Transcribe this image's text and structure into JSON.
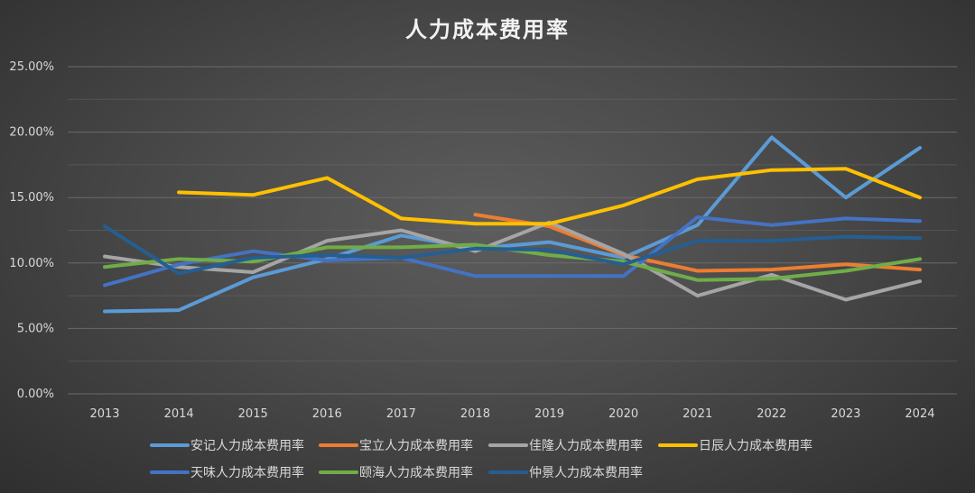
{
  "chart_data": {
    "type": "line",
    "title": "人力成本费用率",
    "xlabel": "",
    "ylabel": "",
    "x": [
      "2013",
      "2014",
      "2015",
      "2016",
      "2017",
      "2018",
      "2019",
      "2020",
      "2021",
      "2022",
      "2023",
      "2024"
    ],
    "ylim": [
      0,
      0.25
    ],
    "yticks": [
      "0.00%",
      "5.00%",
      "10.00%",
      "15.00%",
      "20.00%",
      "25.00%"
    ],
    "grid": true,
    "legend_position": "bottom",
    "series": [
      {
        "name": "安记人力成本费用率",
        "color": "#5b9bd5",
        "values": [
          0.063,
          0.064,
          0.089,
          0.103,
          0.121,
          0.111,
          0.116,
          0.104,
          0.129,
          0.196,
          0.15,
          0.188
        ]
      },
      {
        "name": "宝立人力成本费用率",
        "color": "#ed7d31",
        "values": [
          null,
          null,
          null,
          null,
          null,
          0.137,
          0.128,
          0.106,
          0.094,
          0.095,
          0.099,
          0.095
        ]
      },
      {
        "name": "佳隆人力成本费用率",
        "color": "#a5a5a5",
        "values": [
          0.105,
          0.097,
          0.093,
          0.117,
          0.125,
          0.109,
          0.131,
          0.107,
          0.075,
          0.091,
          0.072,
          0.086
        ]
      },
      {
        "name": "日辰人力成本费用率",
        "color": "#ffc000",
        "values": [
          null,
          0.154,
          0.152,
          0.165,
          0.134,
          0.13,
          0.13,
          0.144,
          0.164,
          0.171,
          0.172,
          0.15
        ]
      },
      {
        "name": "天味人力成本费用率",
        "color": "#4472c4",
        "values": [
          0.083,
          0.099,
          0.109,
          0.102,
          0.104,
          0.09,
          0.09,
          0.09,
          0.135,
          0.129,
          0.134,
          0.132
        ]
      },
      {
        "name": "颐海人力成本费用率",
        "color": "#70ad47",
        "values": [
          0.097,
          0.103,
          0.101,
          0.112,
          0.112,
          0.114,
          0.106,
          0.101,
          0.087,
          0.088,
          0.094,
          0.103
        ]
      },
      {
        "name": "仲景人力成本费用率",
        "color": "#255e91",
        "values": [
          0.128,
          0.092,
          0.104,
          0.106,
          0.104,
          0.111,
          0.11,
          0.099,
          0.117,
          0.117,
          0.12,
          0.119
        ]
      }
    ]
  }
}
